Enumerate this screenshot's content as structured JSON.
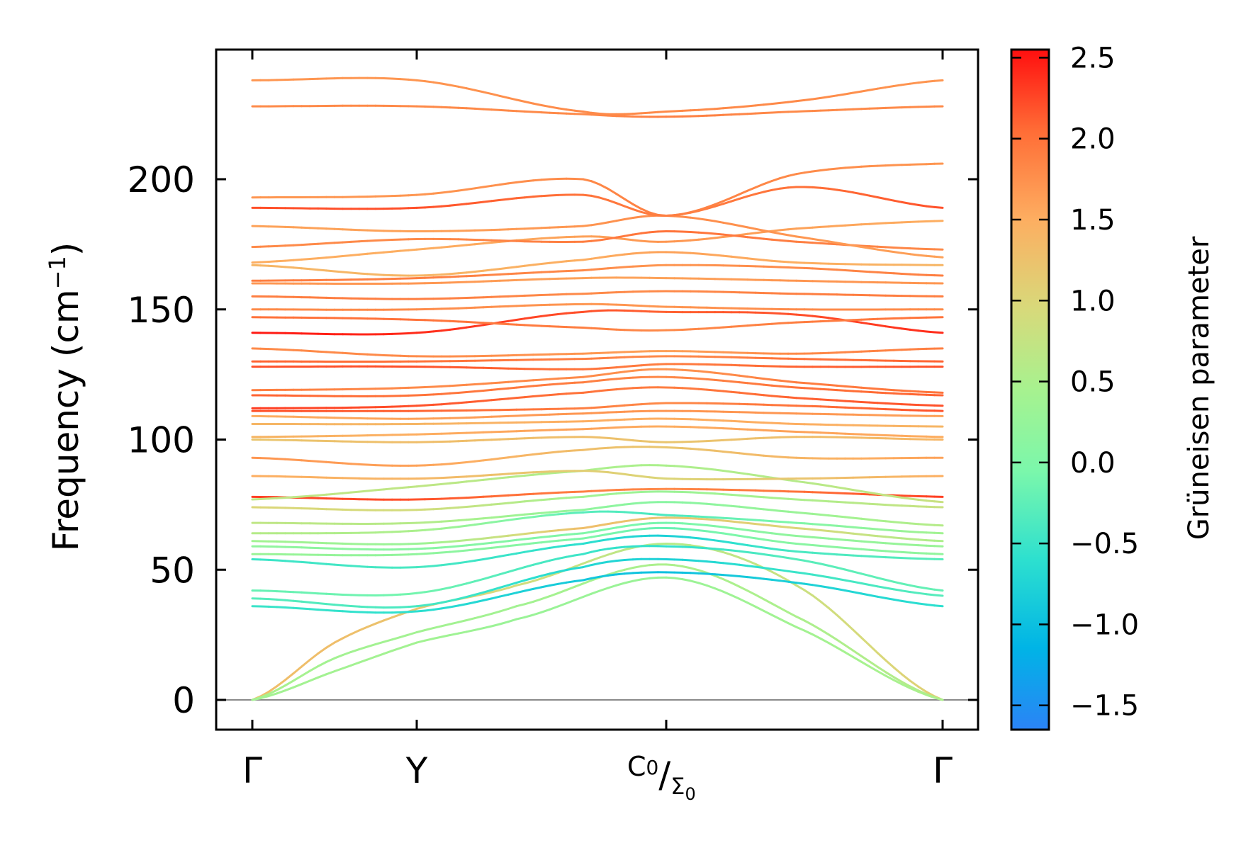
{
  "chart_data": {
    "type": "line",
    "title": "",
    "ylabel": "Frequency (cm⁻¹)",
    "ylabel_parts": {
      "main": "Frequency (cm",
      "sup": "−1",
      "close": ")"
    },
    "xlabel": "",
    "ylim": [
      -12,
      250
    ],
    "yticks": [
      0,
      50,
      100,
      150,
      200
    ],
    "xlim": [
      0,
      4.2
    ],
    "high_symmetry_points": [
      {
        "x": 0.0,
        "label": "Γ"
      },
      {
        "x": 1.0,
        "label": "Y"
      },
      {
        "x": 2.5,
        "label_main": "C",
        "label_sub1": "0",
        "label_slash": "/",
        "label_main2": "Σ",
        "label_sub2": "0"
      },
      {
        "x": 4.2,
        "label": "Γ"
      }
    ],
    "colorbar": {
      "label": "Grüneisen parameter",
      "range": [
        -1.65,
        2.55
      ],
      "ticks": [
        -1.5,
        -1.0,
        -0.5,
        0.0,
        0.5,
        1.0,
        1.5,
        2.0,
        2.5
      ],
      "tick_labels": [
        "−1.5",
        "−1.0",
        "−0.5",
        "0.0",
        "0.5",
        "1.0",
        "1.5",
        "2.0",
        "2.5"
      ]
    },
    "series": [
      {
        "name": "band-1",
        "x": [
          0,
          0.5,
          1.0,
          1.6,
          2.5,
          3.3,
          4.2
        ],
        "y": [
          0,
          22,
          35,
          44,
          60,
          44,
          0
        ],
        "g": [
          1.3,
          1.3,
          1.2,
          0.9,
          0.6,
          0.8,
          1.1
        ]
      },
      {
        "name": "band-2",
        "x": [
          0,
          0.5,
          1.0,
          1.6,
          2.5,
          3.3,
          4.2
        ],
        "y": [
          0,
          16,
          26,
          36,
          52,
          32,
          0
        ],
        "g": [
          0.5,
          0.4,
          0.4,
          0.4,
          0.5,
          0.5,
          0.6
        ]
      },
      {
        "name": "band-3",
        "x": [
          0,
          0.5,
          1.0,
          1.6,
          2.5,
          3.3,
          4.2
        ],
        "y": [
          0,
          11,
          22,
          31,
          47,
          28,
          0
        ],
        "g": [
          0.4,
          0.4,
          0.4,
          0.3,
          0.3,
          0.4,
          0.5
        ]
      },
      {
        "name": "band-4",
        "x": [
          0,
          1.0,
          2.0,
          2.5,
          3.3,
          4.2
        ],
        "y": [
          36,
          34,
          46,
          49,
          45,
          36
        ],
        "g": [
          -0.5,
          -0.6,
          -0.9,
          -1.0,
          -0.8,
          -0.6
        ]
      },
      {
        "name": "band-5",
        "x": [
          0,
          1.0,
          2.0,
          2.5,
          3.3,
          4.2
        ],
        "y": [
          39,
          36,
          51,
          54,
          49,
          40
        ],
        "g": [
          -0.3,
          -0.4,
          -0.7,
          -0.8,
          -0.5,
          -0.3
        ]
      },
      {
        "name": "band-6",
        "x": [
          0,
          1.0,
          2.0,
          2.5,
          3.3,
          4.2
        ],
        "y": [
          42,
          41,
          56,
          59,
          54,
          42
        ],
        "g": [
          -0.2,
          -0.1,
          -0.5,
          -0.6,
          -0.3,
          -0.2
        ]
      },
      {
        "name": "band-7",
        "x": [
          0,
          1.0,
          2.0,
          2.5,
          3.3,
          4.2
        ],
        "y": [
          54,
          51,
          60,
          63,
          57,
          54
        ],
        "g": [
          -0.5,
          -0.4,
          -0.6,
          -0.8,
          -0.4,
          -0.3
        ]
      },
      {
        "name": "band-8",
        "x": [
          0,
          1.0,
          2.0,
          2.5,
          3.3,
          4.2
        ],
        "y": [
          56,
          56,
          62,
          66,
          60,
          56
        ],
        "g": [
          0.3,
          0.2,
          0.0,
          -0.2,
          0.1,
          0.2
        ]
      },
      {
        "name": "band-9",
        "x": [
          0,
          1.0,
          2.0,
          2.5,
          3.3,
          4.2
        ],
        "y": [
          59,
          58,
          64,
          68,
          63,
          59
        ],
        "g": [
          0.2,
          0.1,
          0.0,
          -0.1,
          0.2,
          0.3
        ]
      },
      {
        "name": "band-10",
        "x": [
          0,
          1.0,
          2.0,
          2.5,
          3.3,
          4.2
        ],
        "y": [
          61,
          60,
          66,
          70,
          66,
          61
        ],
        "g": [
          0.4,
          0.3,
          1.3,
          1.2,
          1.0,
          0.5
        ]
      },
      {
        "name": "band-11",
        "x": [
          0,
          1.0,
          2.0,
          2.5,
          3.3,
          4.2
        ],
        "y": [
          64,
          65,
          72,
          71,
          68,
          64
        ],
        "g": [
          0.6,
          0.5,
          -0.3,
          -0.4,
          0.0,
          0.4
        ]
      },
      {
        "name": "band-12",
        "x": [
          0,
          1.0,
          2.0,
          2.5,
          3.3,
          4.2
        ],
        "y": [
          68,
          68,
          73,
          76,
          72,
          67
        ],
        "g": [
          0.7,
          0.6,
          0.2,
          0.1,
          0.3,
          0.6
        ]
      },
      {
        "name": "band-13",
        "x": [
          0,
          1.0,
          2.0,
          2.5,
          3.3,
          4.2
        ],
        "y": [
          74,
          73,
          78,
          80,
          77,
          74
        ],
        "g": [
          1.0,
          0.9,
          0.4,
          0.3,
          0.5,
          0.8
        ]
      },
      {
        "name": "band-14",
        "x": [
          0,
          1.0,
          2.0,
          2.5,
          3.3,
          4.2
        ],
        "y": [
          78,
          77,
          80,
          81,
          80,
          78
        ],
        "g": [
          2.3,
          2.2,
          1.9,
          1.8,
          2.0,
          2.3
        ]
      },
      {
        "name": "band-15",
        "x": [
          0,
          1.0,
          2.0,
          2.5,
          3.3,
          4.2
        ],
        "y": [
          77,
          82,
          88,
          90,
          84,
          76
        ],
        "g": [
          0.7,
          0.7,
          0.5,
          0.5,
          0.6,
          0.8
        ]
      },
      {
        "name": "band-16",
        "x": [
          0,
          1.0,
          2.0,
          2.5,
          3.3,
          4.2
        ],
        "y": [
          86,
          85,
          88,
          85,
          85,
          86
        ],
        "g": [
          1.5,
          1.4,
          1.1,
          1.0,
          1.2,
          1.5
        ]
      },
      {
        "name": "band-17",
        "x": [
          0,
          1.0,
          2.0,
          2.5,
          3.3,
          4.2
        ],
        "y": [
          93,
          90,
          96,
          97,
          93,
          93
        ],
        "g": [
          1.7,
          1.6,
          1.3,
          1.2,
          1.4,
          1.6
        ]
      },
      {
        "name": "band-18",
        "x": [
          0,
          1.0,
          2.0,
          2.5,
          3.3,
          4.2
        ],
        "y": [
          100,
          99,
          101,
          99,
          101,
          100
        ],
        "g": [
          1.2,
          1.3,
          1.3,
          1.2,
          1.3,
          1.4
        ]
      },
      {
        "name": "band-19",
        "x": [
          0,
          1.0,
          2.0,
          2.5,
          3.3,
          4.2
        ],
        "y": [
          101,
          102,
          104,
          105,
          103,
          101
        ],
        "g": [
          1.4,
          1.5,
          1.6,
          1.5,
          1.6,
          1.5
        ]
      },
      {
        "name": "band-20",
        "x": [
          0,
          1.0,
          2.0,
          2.5,
          3.3,
          4.2
        ],
        "y": [
          106,
          106,
          107,
          108,
          106,
          105
        ],
        "g": [
          1.4,
          1.4,
          1.5,
          1.5,
          1.5,
          1.4
        ]
      },
      {
        "name": "band-21",
        "x": [
          0,
          1.0,
          2.0,
          2.5,
          3.3,
          4.2
        ],
        "y": [
          109,
          108,
          110,
          111,
          110,
          109
        ],
        "g": [
          1.5,
          1.6,
          1.7,
          1.7,
          1.7,
          1.6
        ]
      },
      {
        "name": "band-22",
        "x": [
          0,
          1.0,
          2.0,
          2.5,
          3.3,
          4.2
        ],
        "y": [
          111,
          111,
          112,
          114,
          113,
          111
        ],
        "g": [
          2.2,
          2.1,
          1.9,
          1.8,
          2.0,
          2.2
        ]
      },
      {
        "name": "band-23",
        "x": [
          0,
          1.0,
          2.0,
          2.5,
          3.3,
          4.2
        ],
        "y": [
          112,
          113,
          118,
          120,
          116,
          113
        ],
        "g": [
          2.3,
          2.2,
          2.0,
          1.9,
          2.1,
          2.2
        ]
      },
      {
        "name": "band-24",
        "x": [
          0,
          1.0,
          2.0,
          2.5,
          3.3,
          4.2
        ],
        "y": [
          117,
          117,
          122,
          124,
          120,
          117
        ],
        "g": [
          2.1,
          2.0,
          1.9,
          1.8,
          2.0,
          2.1
        ]
      },
      {
        "name": "band-25",
        "x": [
          0,
          1.0,
          2.0,
          2.5,
          3.3,
          4.2
        ],
        "y": [
          119,
          120,
          124,
          127,
          122,
          118
        ],
        "g": [
          1.9,
          1.8,
          1.8,
          1.7,
          1.9,
          2.0
        ]
      },
      {
        "name": "band-26",
        "x": [
          0,
          1.0,
          2.0,
          2.5,
          3.3,
          4.2
        ],
        "y": [
          128,
          128,
          127,
          129,
          128,
          128
        ],
        "g": [
          2.2,
          2.2,
          2.0,
          1.9,
          2.1,
          2.2
        ]
      },
      {
        "name": "band-27",
        "x": [
          0,
          1.0,
          2.0,
          2.5,
          3.3,
          4.2
        ],
        "y": [
          130,
          130,
          131,
          132,
          131,
          130
        ],
        "g": [
          2.1,
          2.0,
          1.9,
          1.8,
          2.0,
          2.1
        ]
      },
      {
        "name": "band-28",
        "x": [
          0,
          1.0,
          2.0,
          2.5,
          3.3,
          4.2
        ],
        "y": [
          135,
          132,
          133,
          134,
          133,
          135
        ],
        "g": [
          1.8,
          1.8,
          1.7,
          1.6,
          1.8,
          1.9
        ]
      },
      {
        "name": "band-29",
        "x": [
          0,
          1.0,
          2.0,
          2.5,
          3.3,
          4.2
        ],
        "y": [
          141,
          141,
          149,
          149,
          148,
          141
        ],
        "g": [
          2.5,
          2.4,
          2.2,
          2.1,
          2.2,
          2.4
        ]
      },
      {
        "name": "band-30",
        "x": [
          0,
          1.0,
          2.0,
          2.5,
          3.3,
          4.2
        ],
        "y": [
          147,
          146,
          143,
          142,
          145,
          147
        ],
        "g": [
          2.0,
          2.0,
          1.9,
          1.8,
          1.9,
          2.0
        ]
      },
      {
        "name": "band-31",
        "x": [
          0,
          1.0,
          2.0,
          2.5,
          3.3,
          4.2
        ],
        "y": [
          150,
          150,
          152,
          151,
          150,
          150
        ],
        "g": [
          1.8,
          1.8,
          1.7,
          1.7,
          1.8,
          1.8
        ]
      },
      {
        "name": "band-32",
        "x": [
          0,
          1.0,
          2.0,
          2.5,
          3.3,
          4.2
        ],
        "y": [
          155,
          154,
          156,
          157,
          156,
          155
        ],
        "g": [
          1.9,
          1.9,
          1.8,
          1.8,
          1.9,
          1.9
        ]
      },
      {
        "name": "band-33",
        "x": [
          0,
          1.0,
          2.0,
          2.5,
          3.3,
          4.2
        ],
        "y": [
          160,
          160,
          162,
          162,
          161,
          160
        ],
        "g": [
          1.7,
          1.7,
          1.6,
          1.6,
          1.7,
          1.7
        ]
      },
      {
        "name": "band-34",
        "x": [
          0,
          1.0,
          2.0,
          2.5,
          3.3,
          4.2
        ],
        "y": [
          161,
          162,
          165,
          167,
          166,
          163
        ],
        "g": [
          1.9,
          1.9,
          1.8,
          1.7,
          1.8,
          1.9
        ]
      },
      {
        "name": "band-35",
        "x": [
          0,
          1.0,
          2.0,
          2.5,
          3.3,
          4.2
        ],
        "y": [
          167,
          163,
          169,
          172,
          168,
          167
        ],
        "g": [
          1.4,
          1.4,
          1.5,
          1.6,
          1.5,
          1.4
        ]
      },
      {
        "name": "band-36",
        "x": [
          0,
          1.0,
          2.0,
          2.5,
          3.3,
          4.2
        ],
        "y": [
          168,
          173,
          178,
          176,
          181,
          184
        ],
        "g": [
          1.5,
          1.5,
          1.6,
          1.7,
          1.6,
          1.5
        ]
      },
      {
        "name": "band-37",
        "x": [
          0,
          1.0,
          2.0,
          2.5,
          3.3,
          4.2
        ],
        "y": [
          174,
          177,
          176,
          180,
          176,
          173
        ],
        "g": [
          1.8,
          1.8,
          1.9,
          2.0,
          1.9,
          1.8
        ]
      },
      {
        "name": "band-38",
        "x": [
          0,
          1.0,
          2.0,
          2.5,
          3.3,
          4.2
        ],
        "y": [
          182,
          180,
          182,
          186,
          178,
          170
        ],
        "g": [
          1.6,
          1.6,
          1.7,
          1.8,
          1.7,
          1.6
        ]
      },
      {
        "name": "band-39",
        "x": [
          0,
          1.0,
          2.0,
          2.5,
          3.3,
          4.2
        ],
        "y": [
          189,
          189,
          194,
          186,
          197,
          189
        ],
        "g": [
          2.2,
          2.2,
          2.0,
          1.9,
          2.0,
          2.2
        ]
      },
      {
        "name": "band-40",
        "x": [
          0,
          1.0,
          2.0,
          2.5,
          3.3,
          4.2
        ],
        "y": [
          193,
          194,
          200,
          186,
          202,
          206
        ],
        "g": [
          1.7,
          1.7,
          1.8,
          1.9,
          1.8,
          1.7
        ]
      },
      {
        "name": "band-41",
        "x": [
          0,
          1.0,
          2.0,
          2.5,
          3.3,
          4.2
        ],
        "y": [
          228,
          228,
          225,
          224,
          226,
          228
        ],
        "g": [
          1.8,
          1.8,
          1.8,
          1.9,
          1.8,
          1.8
        ]
      },
      {
        "name": "band-42",
        "x": [
          0,
          1.0,
          2.0,
          2.5,
          3.3,
          4.2
        ],
        "y": [
          238,
          238,
          226,
          226,
          230,
          238
        ],
        "g": [
          1.7,
          1.7,
          1.8,
          1.8,
          1.8,
          1.7
        ]
      }
    ]
  }
}
